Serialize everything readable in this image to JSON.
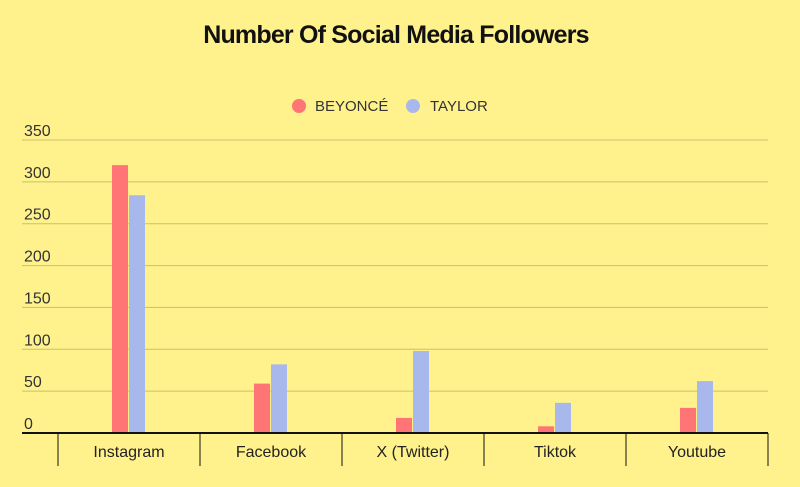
{
  "chart_data": {
    "type": "bar",
    "title": "Number Of Social Media Followers",
    "xlabel": "",
    "ylabel": "",
    "categories": [
      "Instagram",
      "Facebook",
      "X (Twitter)",
      "Tiktok",
      "Youtube"
    ],
    "series": [
      {
        "name": "BEYONCÉ",
        "color": "#FF7575",
        "values": [
          320,
          59,
          18,
          8,
          30
        ]
      },
      {
        "name": "TAYLOR",
        "color": "#A9B8EC",
        "values": [
          284,
          82,
          98,
          36,
          62
        ]
      }
    ],
    "ylim": [
      0,
      350
    ],
    "yticks": [
      "0",
      "50",
      "100",
      "150",
      "200",
      "250",
      "300",
      "350"
    ],
    "grid": true,
    "legend_position": "top-center"
  },
  "colors": {
    "background": "#FFF28C",
    "gridline": "#C9C06A",
    "axis": "#111111"
  }
}
